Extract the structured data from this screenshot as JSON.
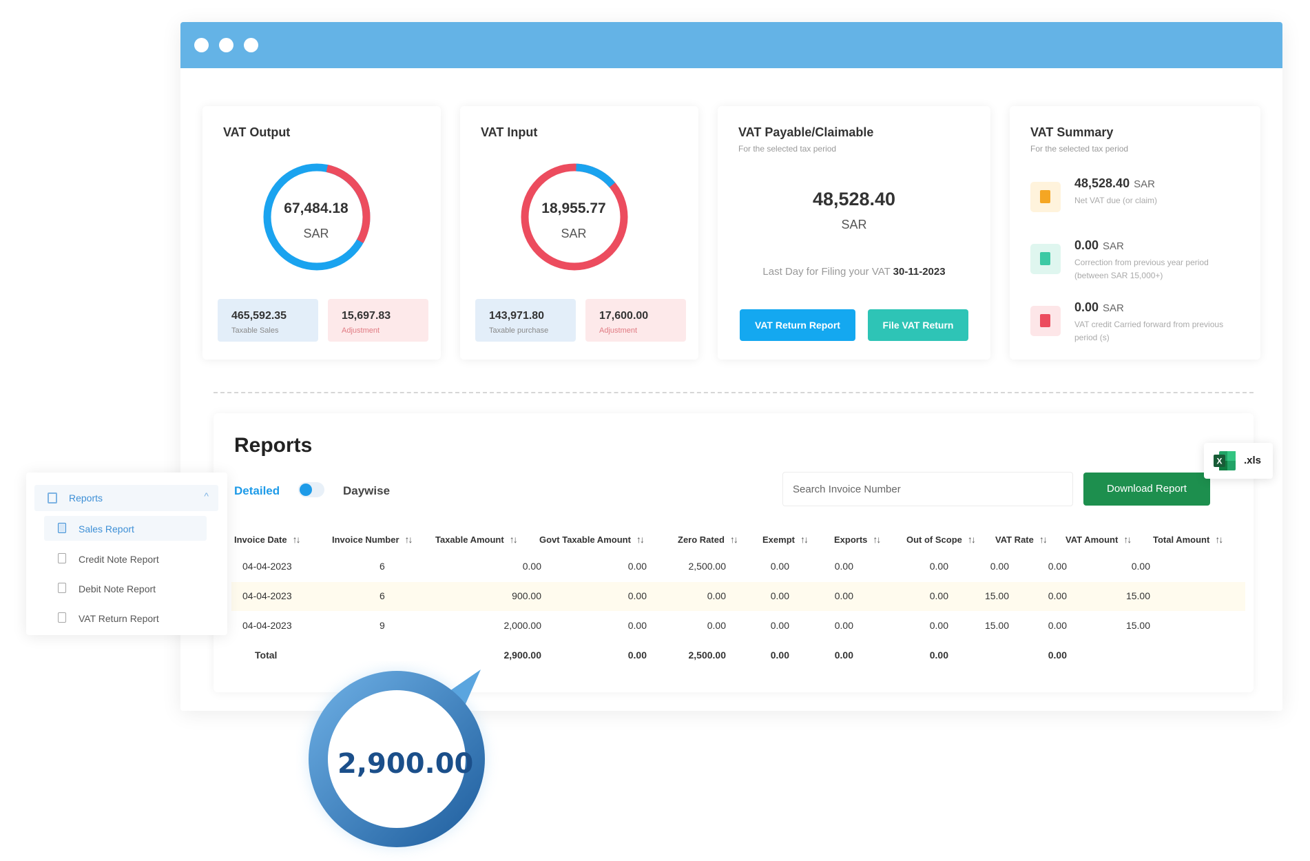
{
  "vat_output": {
    "title": "VAT Output",
    "amount": "67,484.18",
    "unit": "SAR",
    "sales_value": "465,592.35",
    "sales_label": "Taxable Sales",
    "adjustment_value": "15,697.83",
    "adjustment_label": "Adjustment"
  },
  "vat_input": {
    "title": "VAT Input",
    "amount": "18,955.77",
    "unit": "SAR",
    "purchase_value": "143,971.80",
    "purchase_label": "Taxable purchase",
    "adjustment_value": "17,600.00",
    "adjustment_label": "Adjustment"
  },
  "vat_payable": {
    "title": "VAT Payable/Claimable",
    "subtitle": "For the selected tax period",
    "amount": "48,528.40",
    "unit": "SAR",
    "last_day_label": "Last Day for Filing your VAT",
    "last_day_date": "30-11-2023",
    "return_report_button": "VAT Return Report",
    "file_return_button": "File VAT Return"
  },
  "vat_summary": {
    "title": "VAT Summary",
    "subtitle": "For the selected tax period",
    "items": [
      {
        "value": "48,528.40",
        "unit": "SAR",
        "desc": "Net VAT due (or claim)",
        "icon": "document-icon-orange"
      },
      {
        "value": "0.00",
        "unit": "SAR",
        "desc": "Correction from previous year period (between SAR 15,000+)",
        "icon": "document-icon-teal"
      },
      {
        "value": "0.00",
        "unit": "SAR",
        "desc": "VAT credit Carried forward from previous period (s)",
        "icon": "document-icon-red"
      }
    ]
  },
  "reports": {
    "title": "Reports",
    "tab_detailed": "Detailed",
    "tab_daywise": "Daywise",
    "search_placeholder": "Search Invoice Number",
    "download_button": "Download Report",
    "columns": [
      "Invoice Date",
      "Invoice Number",
      "Taxable Amount",
      "Govt Taxable Amount",
      "Zero Rated",
      "Exempt",
      "Exports",
      "Out of Scope",
      "VAT Rate",
      "VAT Amount",
      "Total Amount"
    ],
    "rows": [
      [
        "04-04-2023",
        "6",
        "0.00",
        "0.00",
        "2,500.00",
        "0.00",
        "0.00",
        "0.00",
        "0.00",
        "0.00",
        "0.00"
      ],
      [
        "04-04-2023",
        "6",
        "900.00",
        "0.00",
        "0.00",
        "0.00",
        "0.00",
        "0.00",
        "15.00",
        "0.00",
        "15.00"
      ],
      [
        "04-04-2023",
        "9",
        "2,000.00",
        "0.00",
        "0.00",
        "0.00",
        "0.00",
        "0.00",
        "15.00",
        "0.00",
        "15.00"
      ]
    ],
    "total_row": [
      "Total",
      "",
      "2,900.00",
      "0.00",
      "2,500.00",
      "0.00",
      "0.00",
      "0.00",
      "",
      "0.00",
      ""
    ]
  },
  "sidebar": {
    "header": "Reports",
    "items": [
      {
        "label": "Sales Report",
        "active": true
      },
      {
        "label": "Credit Note Report",
        "active": false
      },
      {
        "label": "Debit Note Report",
        "active": false
      },
      {
        "label": "VAT Return Report",
        "active": false
      }
    ]
  },
  "export_badge": {
    "label": ".xls",
    "icon": "excel-icon"
  },
  "highlight_bubble": {
    "value": "2,900.00"
  },
  "colors": {
    "titlebar": "#64b3e6",
    "accent_blue": "#1e9be8",
    "accent_teal": "#2ec4b6",
    "donut_blue": "#1aa3ef",
    "donut_red": "#ec4c5e",
    "download_green": "#1d8f4e"
  }
}
